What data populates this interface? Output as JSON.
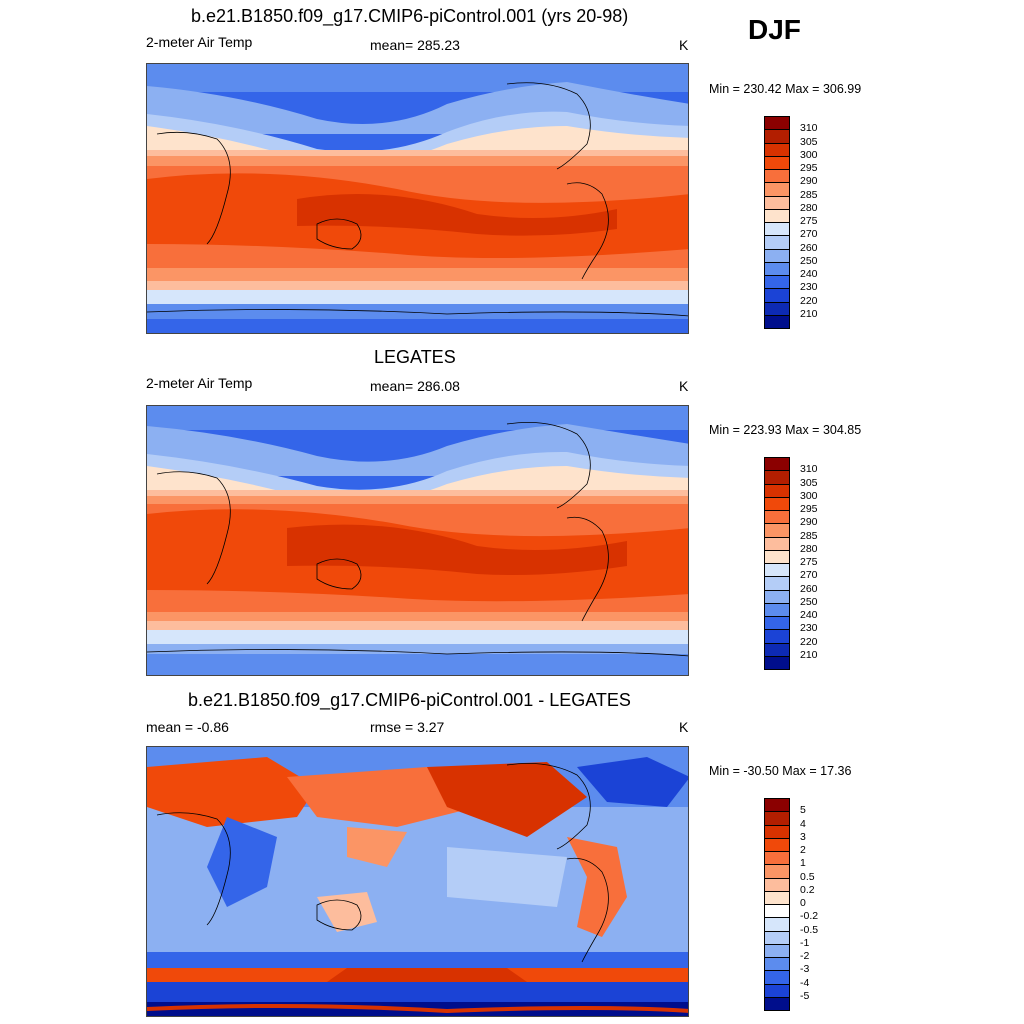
{
  "season": "DJF",
  "panels": [
    {
      "title": "b.e21.B1850.f09_g17.CMIP6-piControl.001 (yrs 20-98)",
      "left_label": "2-meter Air Temp",
      "center_label": "mean= 285.23",
      "units": "K",
      "minmax": "Min = 230.42 Max = 306.99",
      "colorbar_labels": [
        "310",
        "305",
        "300",
        "295",
        "290",
        "285",
        "280",
        "275",
        "270",
        "260",
        "250",
        "240",
        "230",
        "220",
        "210"
      ],
      "colors": [
        "#8b0000",
        "#b21e00",
        "#d83200",
        "#f0490a",
        "#f86f3b",
        "#fb9565",
        "#fdbd9d",
        "#fee3cc",
        "#d6e6fb",
        "#b4cdf7",
        "#8cb0f2",
        "#5c8cee",
        "#3465e9",
        "#1b43d6",
        "#0d2ab4",
        "#000e8c"
      ]
    },
    {
      "title": "LEGATES",
      "left_label": "2-meter Air Temp",
      "center_label": "mean= 286.08",
      "units": "K",
      "minmax": "Min = 223.93 Max = 304.85",
      "colorbar_labels": [
        "310",
        "305",
        "300",
        "295",
        "290",
        "285",
        "280",
        "275",
        "270",
        "260",
        "250",
        "240",
        "230",
        "220",
        "210"
      ],
      "colors": [
        "#8b0000",
        "#b21e00",
        "#d83200",
        "#f0490a",
        "#f86f3b",
        "#fb9565",
        "#fdbd9d",
        "#fee3cc",
        "#d6e6fb",
        "#b4cdf7",
        "#8cb0f2",
        "#5c8cee",
        "#3465e9",
        "#1b43d6",
        "#0d2ab4",
        "#000e8c"
      ]
    },
    {
      "title": "b.e21.B1850.f09_g17.CMIP6-piControl.001 - LEGATES",
      "left_label": "mean =  -0.86",
      "center_label": "rmse =   3.27",
      "units": "K",
      "minmax": "Min = -30.50 Max =  17.36",
      "colorbar_labels": [
        "5",
        "4",
        "3",
        "2",
        "1",
        "0.5",
        "0.2",
        "0",
        "-0.2",
        "-0.5",
        "-1",
        "-2",
        "-3",
        "-4",
        "-5"
      ],
      "colors": [
        "#8b0000",
        "#b21e00",
        "#d83200",
        "#f0490a",
        "#f86f3b",
        "#fb9565",
        "#fdbd9d",
        "#fee3cc",
        "#ffffff",
        "#d6e6fb",
        "#b4cdf7",
        "#8cb0f2",
        "#5c8cee",
        "#3465e9",
        "#1b43d6",
        "#000e8c"
      ]
    }
  ]
}
